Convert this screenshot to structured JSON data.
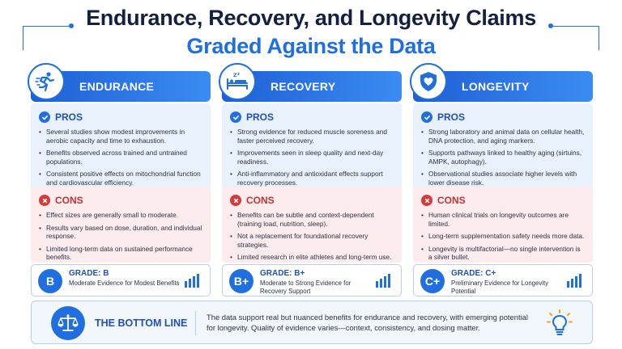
{
  "title": {
    "line1": "Endurance, Recovery, and Longevity Claims",
    "line2": "Graded Against the Data"
  },
  "colors": {
    "accent": "#1f6fe0",
    "navy": "#14203f",
    "pros_bg": "#e9f1fd",
    "cons_bg": "#fdeced",
    "cons_red": "#d63b3b"
  },
  "columns": [
    {
      "title": "ENDURANCE",
      "icon": "runner-icon",
      "pros_label": "PROS",
      "pros": [
        "Several studies show modest improvements in aerobic capacity and time to exhaustion.",
        "Benefits observed across trained and untrained populations.",
        "Consistent positive effects on mitochondrial function and cardiovascular efficiency."
      ],
      "cons_label": "CONS",
      "cons": [
        "Effect sizes are generally small to moderate.",
        "Results vary based on dose, duration, and individual response.",
        "Limited long-term data on sustained performance benefits."
      ],
      "grade_letter": "B",
      "grade_title": "GRADE: B",
      "grade_desc": "Moderate Evidence for Modest Benefits"
    },
    {
      "title": "RECOVERY",
      "icon": "sleep-bed-icon",
      "pros_label": "PROS",
      "pros": [
        "Strong evidence for reduced muscle soreness and faster perceived recovery.",
        "Improvements seen in sleep quality and next-day readiness.",
        "Anti-inflammatory and antioxidant effects support recovery processes."
      ],
      "cons_label": "CONS",
      "cons": [
        "Benefits can be subtle and context-dependent (training load, nutrition, sleep).",
        "Not a replacement for foundational recovery strategies.",
        "Limited research in elite athletes and long-term use."
      ],
      "grade_letter": "B+",
      "grade_title": "GRADE: B+",
      "grade_desc": "Moderate to Strong Evidence for Recovery Support"
    },
    {
      "title": "LONGEVITY",
      "icon": "heart-shield-icon",
      "pros_label": "PROS",
      "pros": [
        "Strong laboratory and animal data on cellular health, DNA protection, and aging markers.",
        "Supports pathways linked to healthy aging (sirtuins, AMPK, autophagy).",
        "Observational studies associate higher levels with lower disease risk."
      ],
      "cons_label": "CONS",
      "cons": [
        "Human clinical trials on longevity outcomes are limited.",
        "Long-term supplementation safety needs more data.",
        "Longevity is multifactorial—no single intervention is a silver bullet."
      ],
      "grade_letter": "C+",
      "grade_title": "GRADE: C+",
      "grade_desc": "Preliminary Evidence for Longevity Potential"
    }
  ],
  "bottom_line": {
    "title": "THE BOTTOM LINE",
    "text": "The data support real but nuanced benefits for endurance and recovery, with emerging potential for longevity. Quality of evidence varies—context, consistency, and dosing matter."
  }
}
